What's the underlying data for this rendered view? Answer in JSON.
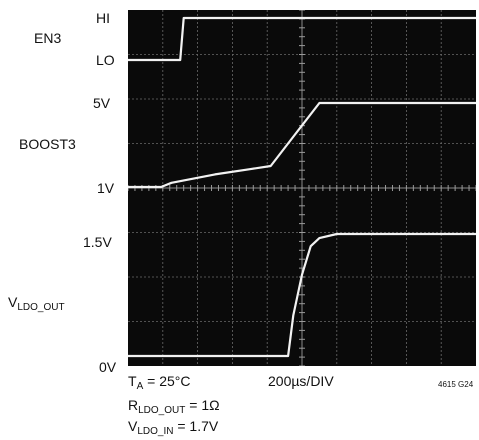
{
  "chart_data": {
    "type": "line",
    "signal_labels": {
      "en3": "EN3",
      "boost3": "BOOST3",
      "vldo_main": "V",
      "vldo_sub": "LDO_OUT"
    },
    "level_labels": {
      "hi": "HI",
      "lo": "LO",
      "boost_high": "5V",
      "boost_low": "1V",
      "vldo_high": "1.5V",
      "zero": "0V"
    },
    "x_axis": {
      "time_per_div": "200µs/DIV",
      "divisions": 10,
      "unit": "µs",
      "range": [
        0,
        2000
      ]
    },
    "grid": true,
    "series": [
      {
        "signal": "EN3",
        "x": [
          0,
          300,
          320,
          2000
        ],
        "y": [
          "LO",
          "LO",
          "HI",
          "HI"
        ]
      },
      {
        "signal": "BOOST3",
        "x": [
          0,
          190,
          250,
          500,
          700,
          820,
          960,
          1100,
          2000
        ],
        "y": [
          1,
          1,
          1.2,
          1.6,
          1.85,
          2,
          3.5,
          5,
          5
        ]
      },
      {
        "signal": "VLDO_OUT",
        "x": [
          0,
          920,
          950,
          1000,
          1050,
          1100,
          1200,
          1300,
          2000
        ],
        "y": [
          0,
          0,
          0.5,
          1.0,
          1.35,
          1.45,
          1.5,
          1.5,
          1.5
        ]
      }
    ]
  },
  "notes": {
    "ta_main": "T",
    "ta_sub": "A",
    "ta_rest": " = 25°C",
    "timebase": "200µs/DIV",
    "rout_main": "R",
    "rout_sub": "LDO_OUT",
    "rout_rest": " = 1Ω",
    "vin_main": "V",
    "vin_sub": "LDO_IN",
    "vin_rest": " = 1.7V",
    "figure_id": "4615 G24"
  }
}
